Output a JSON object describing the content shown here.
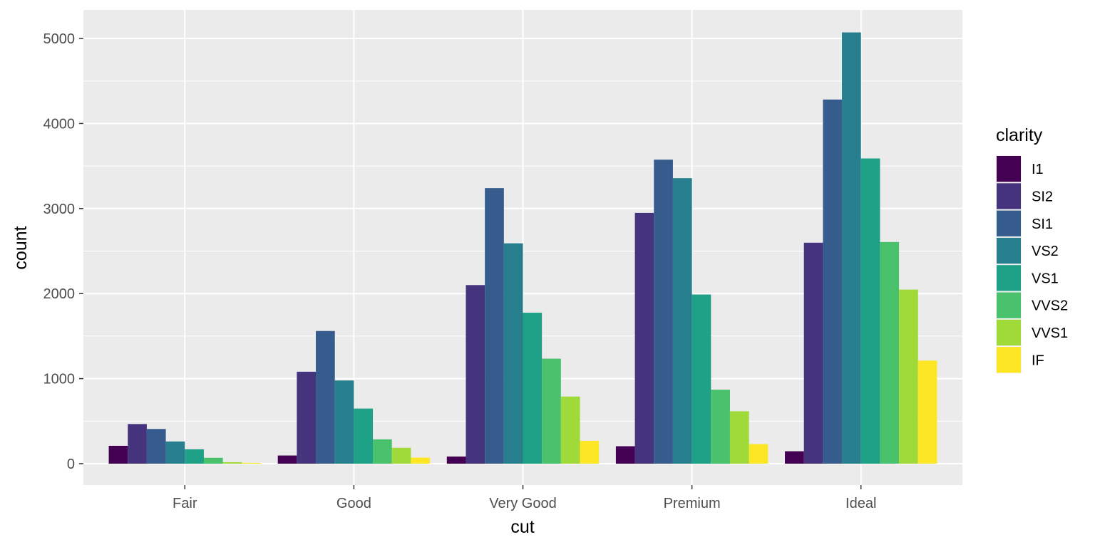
{
  "chart_data": {
    "type": "bar",
    "xlabel": "cut",
    "ylabel": "count",
    "ylim": [
      0,
      5300
    ],
    "yticks": [
      0,
      1000,
      2000,
      3000,
      4000,
      5000
    ],
    "categories": [
      "Fair",
      "Good",
      "Very Good",
      "Premium",
      "Ideal"
    ],
    "legend": {
      "title": "clarity",
      "position": "right"
    },
    "grid": true,
    "background": "#EBEBEB",
    "series": [
      {
        "name": "I1",
        "color": "#440154",
        "values": [
          210,
          96,
          84,
          205,
          146
        ]
      },
      {
        "name": "SI2",
        "color": "#46337E",
        "values": [
          466,
          1081,
          2100,
          2949,
          2598
        ]
      },
      {
        "name": "SI1",
        "color": "#365C8D",
        "values": [
          408,
          1560,
          3240,
          3575,
          4282
        ]
      },
      {
        "name": "VS2",
        "color": "#277F8E",
        "values": [
          261,
          978,
          2591,
          3357,
          5071
        ]
      },
      {
        "name": "VS1",
        "color": "#1FA187",
        "values": [
          170,
          648,
          1775,
          1989,
          3589
        ]
      },
      {
        "name": "VVS2",
        "color": "#4AC16D",
        "values": [
          69,
          286,
          1235,
          870,
          2606
        ]
      },
      {
        "name": "VVS1",
        "color": "#A0DA39",
        "values": [
          17,
          186,
          789,
          616,
          2047
        ]
      },
      {
        "name": "IF",
        "color": "#FDE725",
        "values": [
          9,
          71,
          268,
          230,
          1212
        ]
      }
    ]
  }
}
